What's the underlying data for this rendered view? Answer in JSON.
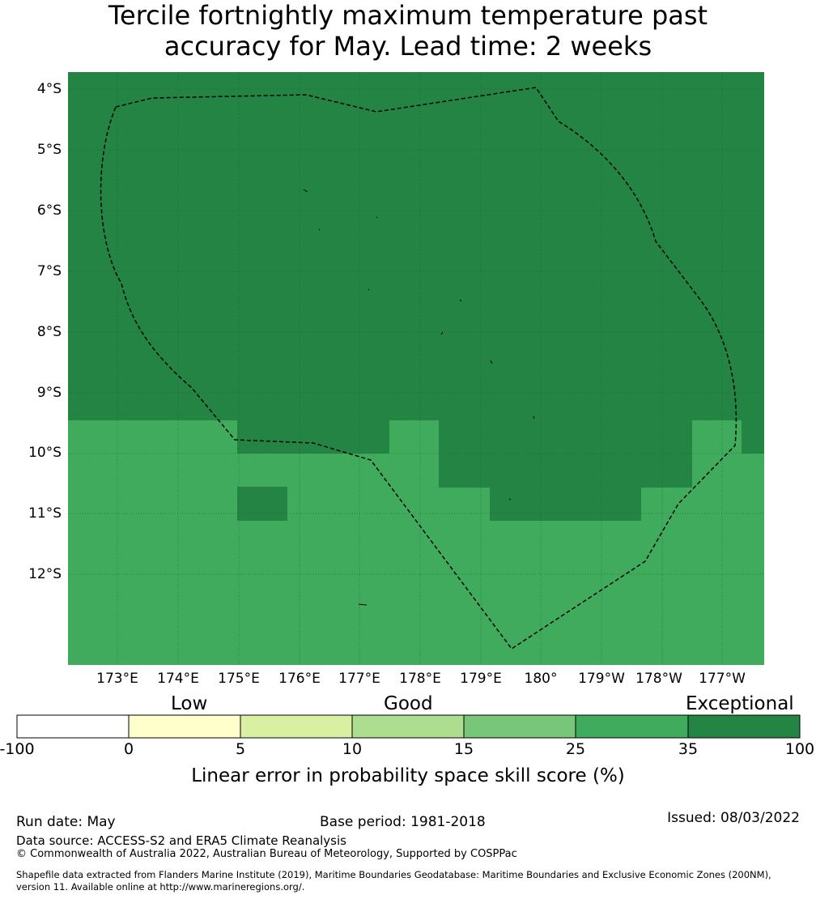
{
  "title_line1": "Tercile fortnightly maximum temperature past",
  "title_line2": "accuracy for May. Lead time: 2 weeks",
  "lat_labels": [
    "4°S",
    "5°S",
    "6°S",
    "7°S",
    "8°S",
    "9°S",
    "10°S",
    "11°S",
    "12°S"
  ],
  "lon_labels": [
    "173°E",
    "174°E",
    "175°E",
    "176°E",
    "177°E",
    "178°E",
    "179°E",
    "180°",
    "179°W",
    "178°W",
    "177°W"
  ],
  "colorbar": {
    "categories": {
      "low": "Low",
      "good": "Good",
      "exceptional": "Exceptional"
    },
    "ticks": [
      "-100",
      "0",
      "5",
      "10",
      "15",
      "25",
      "35",
      "100"
    ],
    "colors": [
      "#ffffff",
      "#ffffcc",
      "#d9f0a3",
      "#addd8e",
      "#78c679",
      "#41ab5d",
      "#238443"
    ],
    "label": "Linear error in probability space skill score (%)"
  },
  "footer": {
    "run_date": "Run date: May",
    "base_period": "Base period: 1981-2018",
    "issued": "Issued: 08/03/2022",
    "data_source": "Data source: ACCESS-S2 and ERA5 Climate Reanalysis",
    "copyright": "© Commonwealth of Australia 2022, Australian Bureau of Meteorology, Supported by COSPPac",
    "shapefile_line1": "Shapefile data extracted from Flanders Marine Institute (2019), Maritime Boundaries Geodatabase: Maritime Boundaries and Exclusive Economic Zones (200NM),",
    "shapefile_line2": "version 11. Available online at http://www.marineregions.org/."
  },
  "map": {
    "skill_classes": {
      "exceptional": "35-100",
      "high": "25-35"
    },
    "color_exceptional": "#238443",
    "color_high": "#41ab5d"
  }
}
